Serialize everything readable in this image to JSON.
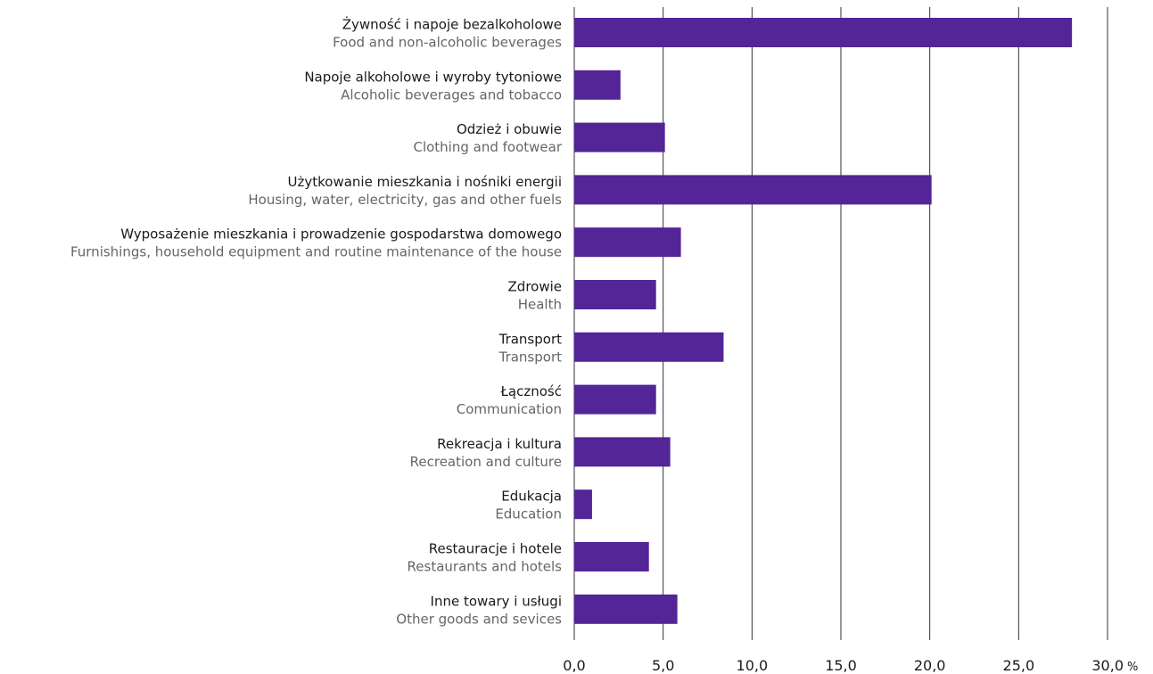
{
  "chart_data": {
    "type": "bar",
    "orientation": "horizontal",
    "categories": [
      {
        "pl": "Żywność i napoje bezalkoholowe",
        "en": "Food and non-alcoholic beverages"
      },
      {
        "pl": "Napoje alkoholowe i wyroby tytoniowe",
        "en": "Alcoholic beverages and tobacco"
      },
      {
        "pl": "Odzież i obuwie",
        "en": "Clothing and footwear"
      },
      {
        "pl": "Użytkowanie mieszkania i nośniki energii",
        "en": "Housing, water, electricity, gas and other fuels"
      },
      {
        "pl": "Wyposażenie mieszkania i prowadzenie gospodarstwa domowego",
        "en": "Furnishings, household equipment and routine maintenance of the house"
      },
      {
        "pl": "Zdrowie",
        "en": "Health"
      },
      {
        "pl": "Transport",
        "en": "Transport"
      },
      {
        "pl": "Łączność",
        "en": "Communication"
      },
      {
        "pl": "Rekreacja i kultura",
        "en": "Recreation and culture"
      },
      {
        "pl": "Edukacja",
        "en": "Education"
      },
      {
        "pl": "Restauracje i hotele",
        "en": "Restaurants and hotels"
      },
      {
        "pl": "Inne towary i usługi",
        "en": "Other goods and sevices"
      }
    ],
    "values": [
      28.0,
      2.6,
      5.1,
      20.1,
      6.0,
      4.6,
      8.4,
      4.6,
      5.4,
      1.0,
      4.2,
      5.8
    ],
    "xlim": [
      0,
      30
    ],
    "x_ticks": [
      0,
      5,
      10,
      15,
      20,
      25,
      30
    ],
    "x_tick_labels": [
      "0,0",
      "5,0",
      "10,0",
      "15,0",
      "20,0",
      "25,0",
      "30,0"
    ],
    "unit": "%",
    "bar_color": "#532596",
    "grid": true,
    "grid_color": "#333333"
  }
}
